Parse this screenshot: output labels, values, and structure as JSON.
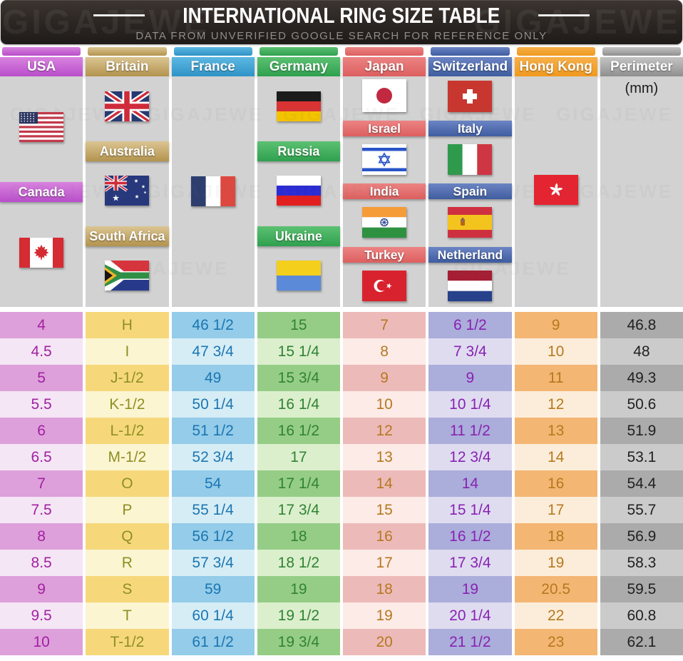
{
  "watermark": "GIGAJEWE",
  "title_bar": {
    "title": "INTERNATIONAL RING SIZE TABLE",
    "subtitle": "DATA FROM UNVERIFIED GOOGLE SEARCH FOR REFERENCE ONLY"
  },
  "perimeter_unit": "(mm)",
  "labels": {
    "canada": "Canada",
    "australia": "Australia",
    "south_africa": "South Africa",
    "russia": "Russia",
    "ukraine": "Ukraine",
    "israel": "Israel",
    "india": "India",
    "turkey": "Turkey",
    "italy": "Italy",
    "spain": "Spain",
    "netherland": "Netherland"
  },
  "columns": [
    {
      "header": "USA",
      "colors": {
        "top": "#d883de",
        "bottom": "#b94ecb",
        "row_dark": "#dda0da",
        "row_light": "#f4e6f4",
        "text": "#a21fa2"
      }
    },
    {
      "header": "Britain",
      "colors": {
        "top": "#dbc592",
        "bottom": "#b3934e",
        "row_dark": "#f6d87b",
        "row_light": "#fbf5d2",
        "text": "#8f8f22"
      }
    },
    {
      "header": "France",
      "colors": {
        "top": "#5cb8e2",
        "bottom": "#2f93c6",
        "row_dark": "#94cce9",
        "row_light": "#d6edf5",
        "text": "#1b76b2"
      }
    },
    {
      "header": "Germany",
      "colors": {
        "top": "#5cc172",
        "bottom": "#2fa04f",
        "row_dark": "#95cd86",
        "row_light": "#dbefcd",
        "text": "#318333"
      }
    },
    {
      "header": "Japan",
      "colors": {
        "top": "#ec8383",
        "bottom": "#dd5f5f",
        "row_dark": "#edbaba",
        "row_light": "#fcebe7",
        "text": "#b5791e"
      }
    },
    {
      "header": "Switzerland",
      "colors": {
        "top": "#6b84c4",
        "bottom": "#3f5da0",
        "row_dark": "#abadda",
        "row_light": "#dfdcf0",
        "text": "#8822b2"
      }
    },
    {
      "header": "Hong Kong",
      "colors": {
        "top": "#f7b04a",
        "bottom": "#f0991f",
        "row_dark": "#f4b673",
        "row_light": "#fcedda",
        "text": "#b5791e"
      }
    },
    {
      "header": "Perimeter",
      "colors": {
        "top": "#c4c4c4",
        "bottom": "#8f8f8f",
        "row_dark": "#ababab",
        "row_light": "#cbcbcb",
        "text": "#212121"
      }
    }
  ],
  "table": {
    "rows": [
      [
        "4",
        "H",
        "46 1/2",
        "15",
        "7",
        "6 1/2",
        "9",
        "46.8"
      ],
      [
        "4.5",
        "I",
        "47 3/4",
        "15 1/4",
        "8",
        "7 3/4",
        "10",
        "48"
      ],
      [
        "5",
        "J-1/2",
        "49",
        "15 3/4",
        "9",
        "9",
        "11",
        "49.3"
      ],
      [
        "5.5",
        "K-1/2",
        "50 1/4",
        "16 1/4",
        "10",
        "10 1/4",
        "12",
        "50.6"
      ],
      [
        "6",
        "L-1/2",
        "51 1/2",
        "16 1/2",
        "12",
        "11 1/2",
        "13",
        "51.9"
      ],
      [
        "6.5",
        "M-1/2",
        "52 3/4",
        "17",
        "13",
        "12 3/4",
        "14",
        "53.1"
      ],
      [
        "7",
        "O",
        "54",
        "17 1/4",
        "14",
        "14",
        "16",
        "54.4"
      ],
      [
        "7.5",
        "P",
        "55 1/4",
        "17 3/4",
        "15",
        "15 1/4",
        "17",
        "55.7"
      ],
      [
        "8",
        "Q",
        "56 1/2",
        "18",
        "16",
        "16 1/2",
        "18",
        "56.9"
      ],
      [
        "8.5",
        "R",
        "57 3/4",
        "18 1/2",
        "17",
        "17 3/4",
        "19",
        "58.3"
      ],
      [
        "9",
        "S",
        "59",
        "19",
        "18",
        "19",
        "20.5",
        "59.5"
      ],
      [
        "9.5",
        "T",
        "60 1/4",
        "19 1/2",
        "19",
        "20 1/4",
        "22",
        "60.8"
      ],
      [
        "10",
        "T-1/2",
        "61 1/2",
        "19 3/4",
        "20",
        "21 1/2",
        "23",
        "62.1"
      ]
    ]
  }
}
